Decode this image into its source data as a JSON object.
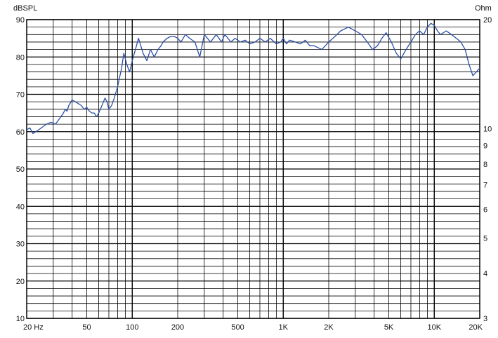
{
  "chart_data": {
    "type": "line",
    "title": "",
    "y_unit_label": "dBSPL",
    "y2_unit_label": "Ohm",
    "xscale": "log",
    "xlim": [
      20,
      20000
    ],
    "ylim": [
      10,
      90
    ],
    "y2scale": "log",
    "y2lim": [
      3,
      20
    ],
    "grid": true,
    "legend": "none",
    "colors": {
      "series": "#2b4fa6",
      "grid": "#000000",
      "background": "#ffffff"
    },
    "x_ticks": [
      {
        "value": 20,
        "label": "20 Hz"
      },
      {
        "value": 50,
        "label": "50"
      },
      {
        "value": 100,
        "label": "100"
      },
      {
        "value": 200,
        "label": "200"
      },
      {
        "value": 500,
        "label": "500"
      },
      {
        "value": 1000,
        "label": "1K"
      },
      {
        "value": 2000,
        "label": "2K"
      },
      {
        "value": 5000,
        "label": "5K"
      },
      {
        "value": 10000,
        "label": "10K"
      },
      {
        "value": 20000,
        "label": "20K"
      }
    ],
    "y_ticks": [
      {
        "value": 10,
        "label": "10"
      },
      {
        "value": 20,
        "label": "20"
      },
      {
        "value": 30,
        "label": "30"
      },
      {
        "value": 40,
        "label": "40"
      },
      {
        "value": 50,
        "label": "50"
      },
      {
        "value": 60,
        "label": "60"
      },
      {
        "value": 70,
        "label": "70"
      },
      {
        "value": 80,
        "label": "80"
      },
      {
        "value": 90,
        "label": "90"
      }
    ],
    "y2_ticks": [
      {
        "value": 3,
        "label": "3"
      },
      {
        "value": 4,
        "label": "4"
      },
      {
        "value": 5,
        "label": "5"
      },
      {
        "value": 6,
        "label": "6"
      },
      {
        "value": 7,
        "label": "7"
      },
      {
        "value": 8,
        "label": "8"
      },
      {
        "value": 9,
        "label": "9"
      },
      {
        "value": 10,
        "label": "10"
      },
      {
        "value": 20,
        "label": "20"
      }
    ],
    "series": [
      {
        "x": [
          20,
          21,
          22,
          23,
          24,
          25,
          27,
          29,
          31,
          33,
          35,
          36,
          37,
          38,
          40,
          42,
          44,
          46,
          48,
          50,
          52,
          54,
          56,
          58,
          60,
          63,
          66,
          68,
          70,
          73,
          76,
          80,
          85,
          88,
          92,
          96,
          100,
          105,
          110,
          118,
          125,
          132,
          140,
          148,
          155,
          160,
          170,
          180,
          190,
          200,
          210,
          225,
          240,
          260,
          280,
          300,
          330,
          360,
          390,
          410,
          430,
          450,
          480,
          520,
          560,
          600,
          650,
          700,
          760,
          820,
          900,
          960,
          1000,
          1050,
          1100,
          1200,
          1300,
          1400,
          1500,
          1600,
          1800,
          2000,
          2200,
          2400,
          2700,
          3000,
          3300,
          3600,
          3900,
          4200,
          4500,
          4800,
          5200,
          5600,
          6000,
          6500,
          7000,
          7500,
          8000,
          8500,
          9000,
          9500,
          10000,
          10500,
          11000,
          12000,
          13000,
          14000,
          15000,
          16000,
          17000,
          18000,
          19000,
          20000
        ],
        "values": [
          60.5,
          61,
          59.5,
          60,
          60.5,
          61,
          62,
          62.5,
          62,
          63.5,
          65,
          66,
          65.5,
          67,
          68.5,
          68,
          67.5,
          67,
          66,
          66.5,
          65.5,
          65,
          65,
          64,
          65,
          67,
          69,
          68,
          66,
          67,
          69,
          72,
          77,
          81,
          78,
          76,
          79,
          82,
          85,
          81,
          79,
          82,
          80,
          82,
          83,
          84,
          85,
          85.5,
          85.5,
          85,
          84,
          86,
          85,
          84,
          80,
          86,
          84,
          86,
          84,
          86,
          85,
          84,
          85,
          84,
          84.5,
          83.5,
          84,
          85,
          84,
          85,
          83.5,
          84,
          85,
          83.5,
          84.5,
          84,
          83.5,
          84.5,
          83,
          83,
          82,
          84,
          85.5,
          87,
          88,
          87,
          86,
          84,
          82,
          83,
          85,
          86.5,
          84,
          81,
          79.5,
          82,
          84,
          86,
          87,
          86,
          88,
          89,
          88.5,
          87,
          86,
          87,
          86,
          85,
          84,
          82,
          78,
          75,
          76,
          77
        ]
      }
    ]
  }
}
